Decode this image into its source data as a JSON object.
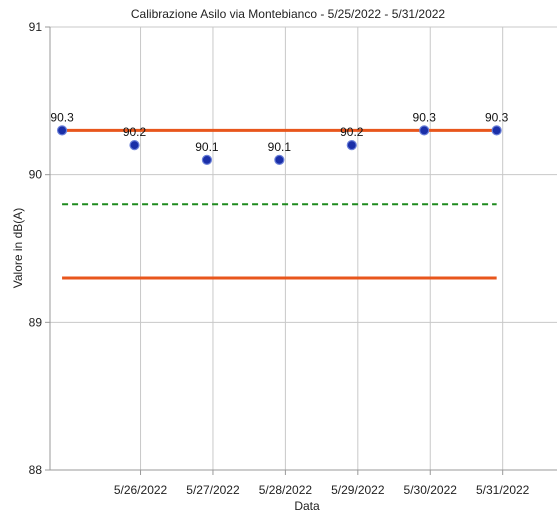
{
  "chart_data": {
    "type": "line",
    "title": "Calibrazione Asilo via Montebianco - 5/25/2022 - 5/31/2022",
    "xlabel": "Data",
    "ylabel": "Valore in dB(A)",
    "ylim": [
      88,
      91
    ],
    "xlim": [
      "5/24/2022 18:00",
      "5/31/2022 18:00"
    ],
    "grid": true,
    "y_ticks": [
      "88",
      "89",
      "90",
      "91"
    ],
    "x_ticks": [
      "5/26/2022",
      "5/27/2022",
      "5/28/2022",
      "5/29/2022",
      "5/30/2022",
      "5/31/2022"
    ],
    "points": {
      "x": [
        "5/24/2022 22:00",
        "5/25/2022 22:00",
        "5/26/2022 22:00",
        "5/27/2022 22:00",
        "5/28/2022 22:00",
        "5/29/2022 22:00",
        "5/30/2022 22:00"
      ],
      "y": [
        90.3,
        90.2,
        90.1,
        90.1,
        90.2,
        90.3,
        90.3
      ],
      "labels": [
        "90.3",
        "90.2",
        "90.1",
        "90.1",
        "90.2",
        "90.3",
        "90.3"
      ],
      "color": "#1a2fa8"
    },
    "reference_lines": [
      {
        "y": 90.3,
        "x_start": "5/24/2022 22:00",
        "x_end": "5/30/2022 22:00",
        "style": "solid",
        "color": "#e8561c"
      },
      {
        "y": 89.8,
        "x_start": "5/24/2022 22:00",
        "x_end": "5/30/2022 22:00",
        "style": "dashed",
        "color": "#1e8a1e"
      },
      {
        "y": 89.3,
        "x_start": "5/24/2022 22:00",
        "x_end": "5/30/2022 22:00",
        "style": "solid",
        "color": "#e8561c"
      }
    ]
  }
}
